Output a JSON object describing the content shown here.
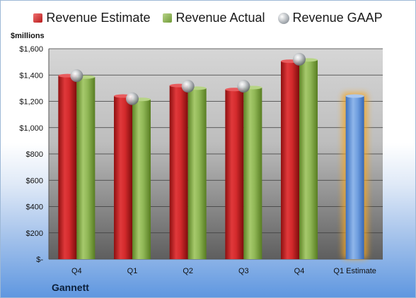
{
  "chart_data": {
    "type": "bar",
    "unit_label": "$millions",
    "company": "Gannett",
    "categories": [
      "Q4",
      "Q1",
      "Q2",
      "Q3",
      "Q4",
      "Q1 Estimate"
    ],
    "ylim": [
      0,
      1600
    ],
    "yticks": [
      0,
      200,
      400,
      600,
      800,
      1000,
      1200,
      1400,
      1600
    ],
    "ytick_labels": [
      "$-",
      "$200",
      "$400",
      "$600",
      "$800",
      "$1,000",
      "$1,200",
      "$1,400",
      "$1,600"
    ],
    "grid": true,
    "legend_position": "top",
    "series": [
      {
        "name": "Revenue Estimate",
        "color": "#c8262a",
        "values": [
          1395,
          1240,
          1320,
          1290,
          1505,
          null
        ]
      },
      {
        "name": "Revenue Actual",
        "color": "#8db356",
        "values": [
          1385,
          1215,
          1300,
          1305,
          1515,
          null
        ]
      },
      {
        "name": "Revenue GAAP",
        "color": "#a0a4a8",
        "values": [
          1395,
          1220,
          1315,
          1315,
          1520,
          null
        ]
      }
    ],
    "estimate": {
      "category": "Q1 Estimate",
      "value": 1240,
      "color": "#5b8fd6",
      "highlight_color": "#f5a623"
    }
  }
}
